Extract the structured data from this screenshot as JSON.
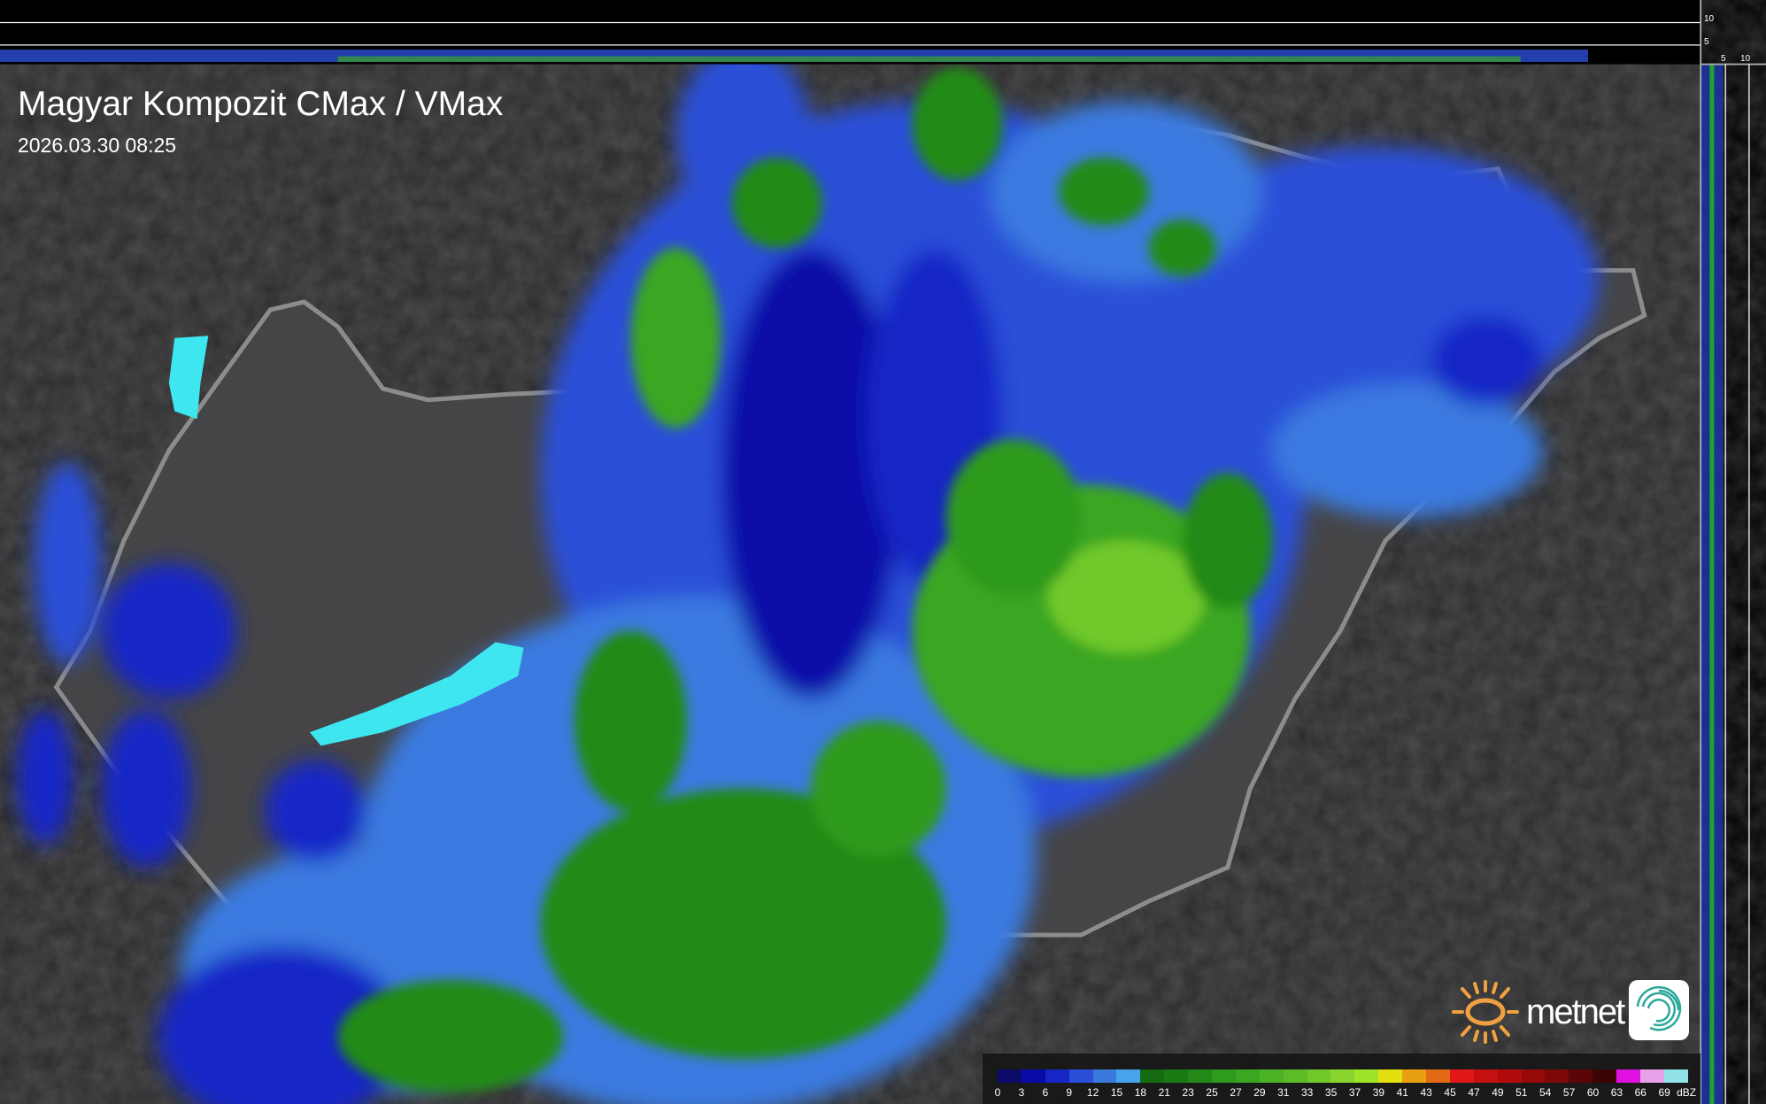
{
  "header": {
    "title": "Magyar Kompozit CMax / VMax",
    "timestamp": "2026.03.30 08:25"
  },
  "profile_axes": {
    "top_ticks": [
      "10",
      "5"
    ],
    "right_ticks": [
      "5",
      "10"
    ]
  },
  "legend": {
    "unit": "dBZ",
    "values": [
      "0",
      "3",
      "6",
      "9",
      "12",
      "15",
      "18",
      "21",
      "23",
      "25",
      "27",
      "29",
      "31",
      "33",
      "35",
      "37",
      "39",
      "41",
      "43",
      "45",
      "47",
      "49",
      "51",
      "54",
      "57",
      "60",
      "63",
      "66",
      "69"
    ],
    "colors": [
      "#0c0a6a",
      "#0a0aa8",
      "#1626c6",
      "#2a4fd8",
      "#3a7ae0",
      "#48a4ea",
      "#166a10",
      "#1a7a14",
      "#238a18",
      "#2e9a1e",
      "#3aa622",
      "#4cb226",
      "#5cbc28",
      "#70c82a",
      "#88d42c",
      "#9ee42a",
      "#e4e010",
      "#e8a012",
      "#e46a18",
      "#e01818",
      "#c41010",
      "#b00c0c",
      "#980a0a",
      "#7e0808",
      "#5a0606",
      "#3a0404",
      "#e010e0",
      "#e8a0e8",
      "#90e4e8"
    ]
  },
  "branding": {
    "logo_text": "metnet",
    "accent": "#f0a040"
  }
}
